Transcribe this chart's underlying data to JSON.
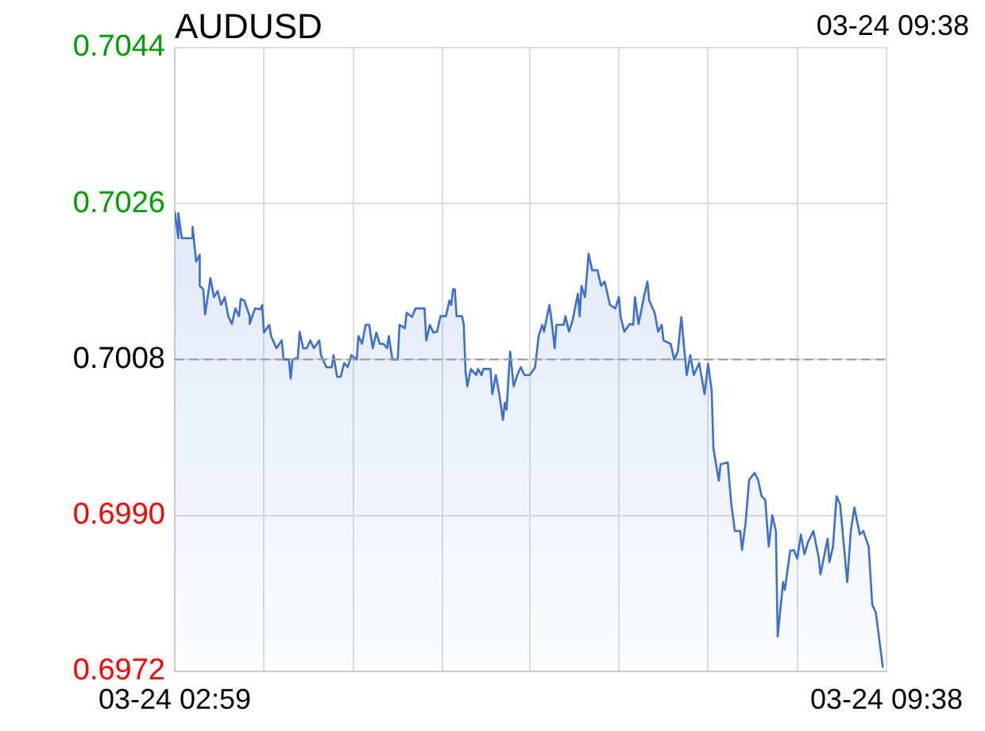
{
  "chart_data": {
    "type": "area",
    "title": "AUDUSD",
    "subtitle": "03-24 09:38",
    "marker": "none",
    "line_style": "solid",
    "grid": true,
    "legend": false,
    "xlim": [
      "--03-24T02:59",
      "--03-24T09:38"
    ],
    "xticks": [
      {
        "value": "--03-24T02:59",
        "label": "03-24 02:59"
      },
      {
        "value": "--03-24T03:49",
        "label": null
      },
      {
        "value": "--03-24T04:39",
        "label": null
      },
      {
        "value": "--03-24T05:29",
        "label": null
      },
      {
        "value": "--03-24T06:18",
        "label": null
      },
      {
        "value": "--03-24T07:08",
        "label": null
      },
      {
        "value": "--03-24T07:58",
        "label": null
      },
      {
        "value": "--03-24T08:48",
        "label": null
      },
      {
        "value": "--03-24T09:38",
        "label": "03-24 09:38"
      }
    ],
    "ylim": [
      0.6972,
      0.7044
    ],
    "yticks": [
      {
        "value": 0.6972,
        "label": "0.6972"
      },
      {
        "value": 0.699,
        "label": "0.6990"
      },
      {
        "value": 0.7008,
        "label": "0.7008"
      },
      {
        "value": 0.7026,
        "label": "0.7026"
      },
      {
        "value": 0.7044,
        "label": "0.7044"
      }
    ],
    "ref_lines": [
      {
        "axis": "y",
        "value": 0.7008,
        "color": "#999999",
        "line_style": "dashed"
      }
    ],
    "x": [
      "--03-24T02:59",
      "--03-24T03:01",
      "--03-24T03:01",
      "--03-24T03:03",
      "--03-24T03:09",
      "--03-24T03:09",
      "--03-24T03:11",
      "--03-24T03:13",
      "--03-24T03:13",
      "--03-24T03:15",
      "--03-24T03:16",
      "--03-24T03:19",
      "--03-24T03:21",
      "--03-24T03:23",
      "--03-24T03:25",
      "--03-24T03:27",
      "--03-24T03:29",
      "--03-24T03:31",
      "--03-24T03:33",
      "--03-24T03:35",
      "--03-24T03:36",
      "--03-24T03:38",
      "--03-24T03:41",
      "--03-24T03:41",
      "--03-24T03:44",
      "--03-24T03:47",
      "--03-24T03:48",
      "--03-24T03:49",
      "--03-24T03:52",
      "--03-24T03:53",
      "--03-24T03:56",
      "--03-24T03:59",
      "--03-24T04:00",
      "--03-24T04:03",
      "--03-24T04:04",
      "--03-24T04:05",
      "--03-24T04:08",
      "--03-24T04:09",
      "--03-24T04:11",
      "--03-24T04:13",
      "--03-24T04:15",
      "--03-24T04:17",
      "--03-24T04:20",
      "--03-24T04:21",
      "--03-24T04:24",
      "--03-24T04:27",
      "--03-24T04:28",
      "--03-24T04:30",
      "--03-24T04:32",
      "--03-24T04:34",
      "--03-24T04:36",
      "--03-24T04:38",
      "--03-24T04:41",
      "--03-24T04:42",
      "--03-24T04:44",
      "--03-24T04:46",
      "--03-24T04:48",
      "--03-24T04:50",
      "--03-24T04:52",
      "--03-24T04:54",
      "--03-24T04:56",
      "--03-24T04:58",
      "--03-24T04:59",
      "--03-24T05:01",
      "--03-24T05:04",
      "--03-24T05:05",
      "--03-24T05:08",
      "--03-24T05:09",
      "--03-24T05:12",
      "--03-24T05:14",
      "--03-24T05:19",
      "--03-24T05:20",
      "--03-24T05:22",
      "--03-24T05:24",
      "--03-24T05:26",
      "--03-24T05:28",
      "--03-24T05:31",
      "--03-24T05:33",
      "--03-24T05:34",
      "--03-24T05:35",
      "--03-24T05:36",
      "--03-24T05:37",
      "--03-24T05:40",
      "--03-24T05:41",
      "--03-24T05:42",
      "--03-24T05:43",
      "--03-24T05:45",
      "--03-24T05:48",
      "--03-24T05:49",
      "--03-24T05:51",
      "--03-24T05:52",
      "--03-24T05:56",
      "--03-24T05:57",
      "--03-24T05:59",
      "--03-24T06:01",
      "--03-24T06:03",
      "--03-24T06:04",
      "--03-24T06:05",
      "--03-24T06:07",
      "--03-24T06:09",
      "--03-24T06:11",
      "--03-24T06:13",
      "--03-24T06:15",
      "--03-24T06:18",
      "--03-24T06:21",
      "--03-24T06:23",
      "--03-24T06:25",
      "--03-24T06:26",
      "--03-24T06:29",
      "--03-24T06:30",
      "--03-24T06:32",
      "--03-24T06:33",
      "--03-24T06:37",
      "--03-24T06:38",
      "--03-24T06:40",
      "--03-24T06:42",
      "--03-24T06:45",
      "--03-24T06:46",
      "--03-24T06:47",
      "--03-24T06:49",
      "--03-24T06:51",
      "--03-24T06:53",
      "--03-24T06:56",
      "--03-24T06:58",
      "--03-24T07:00",
      "--03-24T07:03",
      "--03-24T07:06",
      "--03-24T07:08",
      "--03-24T07:09",
      "--03-24T07:11",
      "--03-24T07:14",
      "--03-24T07:16",
      "--03-24T07:17",
      "--03-24T07:19",
      "--03-24T07:22",
      "--03-24T07:24",
      "--03-24T07:25",
      "--03-24T07:28",
      "--03-24T07:30",
      "--03-24T07:32",
      "--03-24T07:33",
      "--03-24T07:37",
      "--03-24T07:39",
      "--03-24T07:41",
      "--03-24T07:43",
      "--03-24T07:45",
      "--03-24T07:46",
      "--03-24T07:48",
      "--03-24T07:50",
      "--03-24T07:53",
      "--03-24T07:56",
      "--03-24T07:58",
      "--03-24T08:00",
      "--03-24T08:01",
      "--03-24T08:04",
      "--03-24T08:05",
      "--03-24T08:09",
      "--03-24T08:11",
      "--03-24T08:13",
      "--03-24T08:16",
      "--03-24T08:17",
      "--03-24T08:19",
      "--03-24T08:21",
      "--03-24T08:24",
      "--03-24T08:26",
      "--03-24T08:28",
      "--03-24T08:30",
      "--03-24T08:32",
      "--03-24T08:34",
      "--03-24T08:36",
      "--03-24T08:37",
      "--03-24T08:40",
      "--03-24T08:41",
      "--03-24T08:44",
      "--03-24T08:46",
      "--03-24T08:48",
      "--03-24T08:50",
      "--03-24T08:52",
      "--03-24T08:54",
      "--03-24T08:57",
      "--03-24T09:00",
      "--03-24T09:01",
      "--03-24T09:05",
      "--03-24T09:06",
      "--03-24T09:08",
      "--03-24T09:10",
      "--03-24T09:12",
      "--03-24T09:16",
      "--03-24T09:18",
      "--03-24T09:20",
      "--03-24T09:23",
      "--03-24T09:25",
      "--03-24T09:28",
      "--03-24T09:30",
      "--03-24T09:32",
      "--03-24T09:36"
    ],
    "series": [
      {
        "color": "#3b6fd4",
        "values": [
          0.70251,
          0.7022,
          0.70249,
          0.7022,
          0.7022,
          0.70233,
          0.70193,
          0.70201,
          0.70165,
          0.70161,
          0.70132,
          0.70174,
          0.70152,
          0.70159,
          0.70143,
          0.70152,
          0.7013,
          0.70121,
          0.70139,
          0.7013,
          0.7015,
          0.70148,
          0.7013,
          0.70121,
          0.70139,
          0.70138,
          0.70143,
          0.70111,
          0.7012,
          0.70107,
          0.70093,
          0.70102,
          0.7008,
          0.7008,
          0.70058,
          0.7008,
          0.70082,
          0.70112,
          0.70093,
          0.70093,
          0.70102,
          0.70093,
          0.70102,
          0.70085,
          0.70071,
          0.70071,
          0.70085,
          0.7006,
          0.7006,
          0.70076,
          0.70071,
          0.70085,
          0.7008,
          0.70107,
          0.70098,
          0.7012,
          0.7012,
          0.70093,
          0.70111,
          0.70098,
          0.70098,
          0.70093,
          0.70107,
          0.7008,
          0.7008,
          0.7012,
          0.70116,
          0.70134,
          0.70129,
          0.70139,
          0.70139,
          0.70102,
          0.7012,
          0.70111,
          0.70112,
          0.7013,
          0.7013,
          0.70148,
          0.70143,
          0.70161,
          0.70161,
          0.7013,
          0.7013,
          0.70121,
          0.70067,
          0.70049,
          0.70069,
          0.70062,
          0.70069,
          0.70062,
          0.70069,
          0.70069,
          0.7004,
          0.70062,
          0.70039,
          0.7001,
          0.7003,
          0.70022,
          0.70089,
          0.70049,
          0.70062,
          0.70071,
          0.70062,
          0.70062,
          0.70071,
          0.70107,
          0.7012,
          0.70112,
          0.70143,
          0.70129,
          0.70093,
          0.7012,
          0.7012,
          0.7013,
          0.70112,
          0.70125,
          0.70156,
          0.7013,
          0.70165,
          0.70152,
          0.70202,
          0.70183,
          0.70183,
          0.70165,
          0.7017,
          0.70143,
          0.70139,
          0.70152,
          0.70129,
          0.70112,
          0.70121,
          0.7012,
          0.70152,
          0.70121,
          0.70152,
          0.7017,
          0.70148,
          0.70134,
          0.70112,
          0.7012,
          0.70102,
          0.70098,
          0.7008,
          0.70089,
          0.70129,
          0.70084,
          0.70062,
          0.70085,
          0.70062,
          0.70076,
          0.7004,
          0.70075,
          0.70044,
          0.69977,
          0.6994,
          0.69959,
          0.69961,
          0.69913,
          0.69882,
          0.69882,
          0.6986,
          0.69891,
          0.69941,
          0.69949,
          0.69941,
          0.69922,
          0.69918,
          0.69864,
          0.699,
          0.69882,
          0.6976,
          0.69823,
          0.69814,
          0.69859,
          0.6986,
          0.6985,
          0.69878,
          0.69855,
          0.69869,
          0.69882,
          0.69851,
          0.69832,
          0.69873,
          0.69846,
          0.69864,
          0.69922,
          0.69913,
          0.69823,
          0.69882,
          0.69909,
          0.69878,
          0.69882,
          0.69864,
          0.69797,
          0.69788,
          0.69724
        ]
      }
    ]
  }
}
